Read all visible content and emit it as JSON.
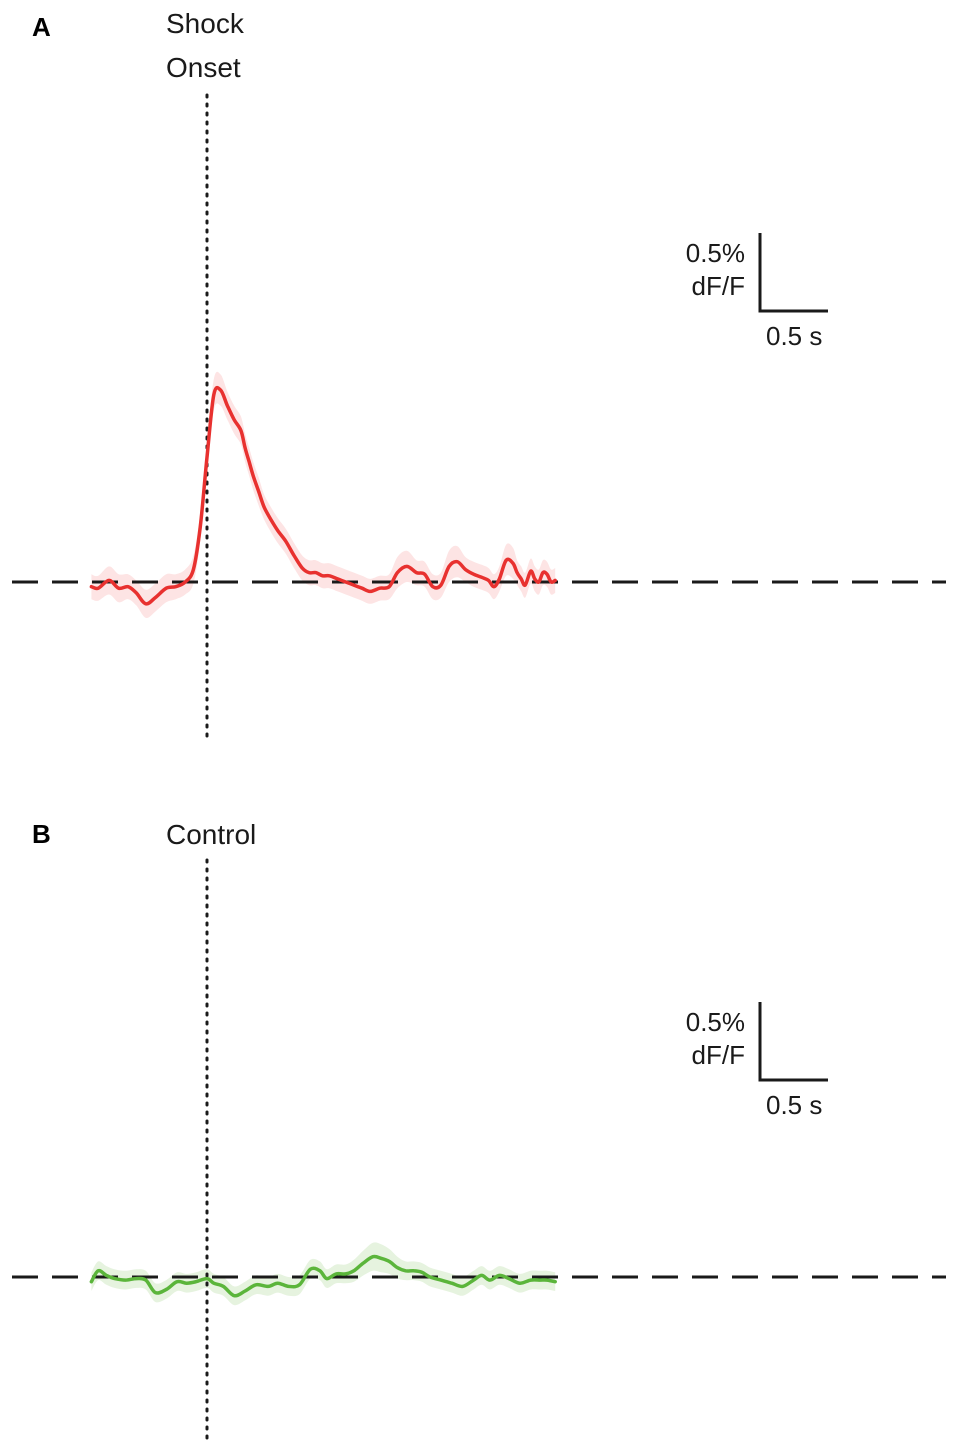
{
  "chart_data": [
    {
      "type": "line",
      "panel": "A",
      "event_label_lines": [
        "Shock",
        "Onset"
      ],
      "x_unit": "s",
      "y_unit": "% dF/F",
      "event_time": 0,
      "baseline": 0,
      "scalebar": {
        "y_label_lines": [
          "0.5%",
          "dF/F"
        ],
        "x_label": "0.5 s",
        "y_size": 0.5,
        "x_size": 0.5
      },
      "line_color": "#e8312f",
      "band_color": "#fde4e4",
      "series": [
        {
          "x": [
            -0.85,
            -0.8,
            -0.72,
            -0.65,
            -0.58,
            -0.52,
            -0.45,
            -0.38,
            -0.3,
            -0.23,
            -0.16,
            -0.1,
            -0.05,
            0.0,
            0.05,
            0.1,
            0.15,
            0.2,
            0.25,
            0.28,
            0.31,
            0.34,
            0.38,
            0.42,
            0.47,
            0.52,
            0.58,
            0.64,
            0.7,
            0.75,
            0.8,
            0.85,
            0.9,
            0.96,
            1.02,
            1.08,
            1.14,
            1.2,
            1.27,
            1.34,
            1.4,
            1.47,
            1.54,
            1.6,
            1.66,
            1.72,
            1.78,
            1.84,
            1.9,
            1.96,
            2.02,
            2.07,
            2.11,
            2.15,
            2.2,
            2.25,
            2.28,
            2.31,
            2.34,
            2.38,
            2.41,
            2.44,
            2.47,
            2.5,
            2.53,
            2.56
          ],
          "y": [
            -0.03,
            -0.04,
            0.01,
            -0.04,
            -0.03,
            -0.07,
            -0.14,
            -0.1,
            -0.04,
            -0.03,
            0.0,
            0.08,
            0.35,
            0.8,
            1.2,
            1.23,
            1.13,
            1.04,
            0.97,
            0.86,
            0.77,
            0.68,
            0.58,
            0.48,
            0.4,
            0.33,
            0.26,
            0.17,
            0.09,
            0.06,
            0.06,
            0.04,
            0.04,
            0.02,
            0.0,
            -0.02,
            -0.04,
            -0.06,
            -0.04,
            -0.03,
            0.06,
            0.1,
            0.06,
            0.05,
            -0.03,
            -0.02,
            0.1,
            0.13,
            0.08,
            0.05,
            0.03,
            0.01,
            -0.03,
            0.02,
            0.14,
            0.12,
            0.06,
            0.02,
            -0.02,
            0.07,
            0.02,
            0.0,
            0.06,
            0.05,
            0.0,
            0.01
          ],
          "ci": [
            0.08,
            0.08,
            0.09,
            0.09,
            0.08,
            0.08,
            0.09,
            0.09,
            0.09,
            0.08,
            0.08,
            0.09,
            0.09,
            0.09,
            0.1,
            0.1,
            0.09,
            0.09,
            0.09,
            0.09,
            0.09,
            0.09,
            0.09,
            0.08,
            0.08,
            0.08,
            0.08,
            0.08,
            0.08,
            0.08,
            0.08,
            0.08,
            0.08,
            0.08,
            0.08,
            0.08,
            0.08,
            0.08,
            0.08,
            0.08,
            0.1,
            0.1,
            0.08,
            0.08,
            0.08,
            0.08,
            0.1,
            0.1,
            0.08,
            0.08,
            0.08,
            0.08,
            0.08,
            0.08,
            0.1,
            0.1,
            0.08,
            0.08,
            0.08,
            0.08,
            0.08,
            0.08,
            0.08,
            0.08,
            0.08,
            0.08
          ]
        }
      ]
    },
    {
      "type": "line",
      "panel": "B",
      "event_label_lines": [
        "Control"
      ],
      "x_unit": "s",
      "y_unit": "% dF/F",
      "event_time": 0,
      "baseline": 0,
      "scalebar": {
        "y_label_lines": [
          "0.5%",
          "dF/F"
        ],
        "x_label": "0.5 s",
        "y_size": 0.5,
        "x_size": 0.5
      },
      "line_color": "#5bb53b",
      "band_color": "#e6f3df",
      "series": [
        {
          "x": [
            -0.85,
            -0.8,
            -0.74,
            -0.68,
            -0.6,
            -0.52,
            -0.45,
            -0.38,
            -0.3,
            -0.22,
            -0.15,
            -0.08,
            0.0,
            0.05,
            0.12,
            0.2,
            0.28,
            0.36,
            0.45,
            0.52,
            0.6,
            0.68,
            0.76,
            0.83,
            0.88,
            0.95,
            1.02,
            1.08,
            1.15,
            1.22,
            1.28,
            1.34,
            1.4,
            1.46,
            1.52,
            1.58,
            1.64,
            1.72,
            1.8,
            1.88,
            1.96,
            2.02,
            2.08,
            2.15,
            2.22,
            2.3,
            2.38,
            2.45,
            2.5,
            2.56
          ],
          "y": [
            -0.03,
            0.04,
            0.01,
            -0.01,
            -0.02,
            -0.01,
            -0.02,
            -0.1,
            -0.08,
            -0.03,
            -0.04,
            -0.03,
            -0.01,
            -0.04,
            -0.06,
            -0.12,
            -0.09,
            -0.05,
            -0.06,
            -0.04,
            -0.06,
            -0.05,
            0.05,
            0.04,
            -0.01,
            0.02,
            0.02,
            0.04,
            0.09,
            0.13,
            0.12,
            0.1,
            0.06,
            0.04,
            0.04,
            0.03,
            0.0,
            -0.02,
            -0.04,
            -0.06,
            -0.02,
            0.01,
            -0.02,
            0.01,
            -0.01,
            -0.04,
            -0.02,
            -0.02,
            -0.02,
            -0.03
          ],
          "ci": [
            0.06,
            0.06,
            0.06,
            0.06,
            0.06,
            0.06,
            0.06,
            0.06,
            0.06,
            0.06,
            0.06,
            0.06,
            0.06,
            0.06,
            0.06,
            0.06,
            0.06,
            0.06,
            0.06,
            0.06,
            0.06,
            0.06,
            0.06,
            0.06,
            0.06,
            0.06,
            0.06,
            0.07,
            0.08,
            0.09,
            0.09,
            0.08,
            0.07,
            0.06,
            0.06,
            0.06,
            0.06,
            0.06,
            0.06,
            0.06,
            0.06,
            0.06,
            0.06,
            0.06,
            0.06,
            0.06,
            0.06,
            0.06,
            0.06,
            0.06
          ]
        }
      ]
    }
  ]
}
